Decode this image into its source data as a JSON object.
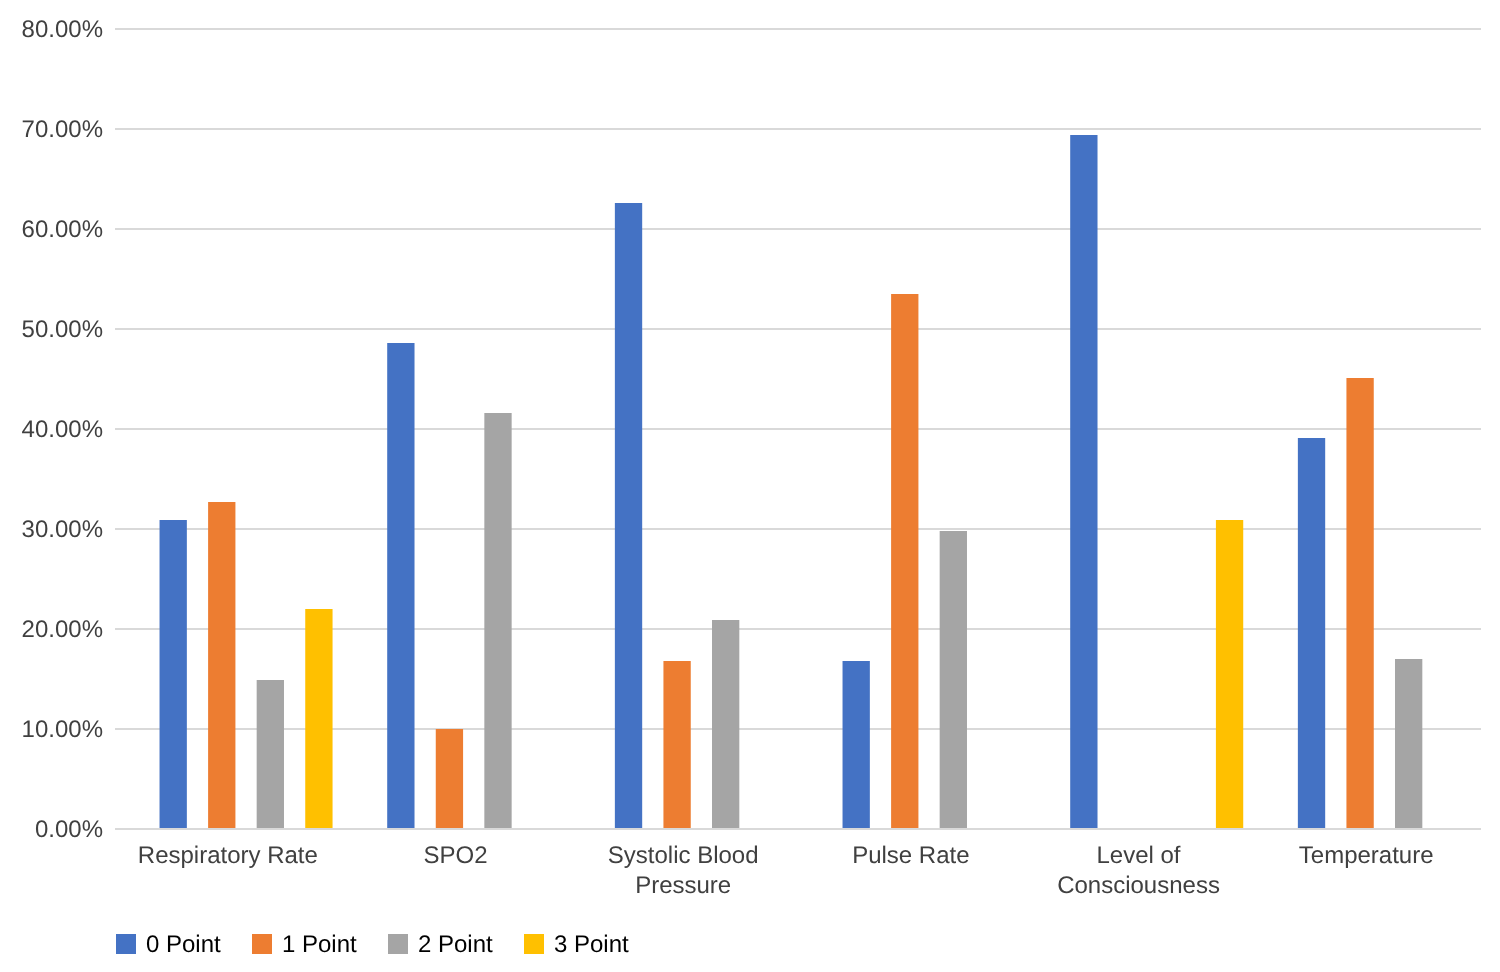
{
  "chart_data": {
    "type": "bar",
    "categories": [
      "Respiratory Rate",
      "SPO2",
      "Systolic Blood Pressure",
      "Pulse Rate",
      "Level of Consciousness",
      "Temperature"
    ],
    "series": [
      {
        "name": "0 Point",
        "color": "#4472c4",
        "values": [
          30.8,
          48.5,
          62.5,
          16.7,
          69.3,
          39.0
        ]
      },
      {
        "name": "1 Point",
        "color": "#ed7d31",
        "values": [
          32.6,
          9.9,
          16.7,
          53.4,
          null,
          45.0
        ]
      },
      {
        "name": "2 Point",
        "color": "#a5a5a5",
        "values": [
          14.8,
          41.5,
          20.8,
          29.7,
          null,
          16.9
        ]
      },
      {
        "name": "3 Point",
        "color": "#ffc000",
        "values": [
          21.9,
          null,
          null,
          null,
          30.8,
          null
        ]
      }
    ],
    "ylim": [
      0,
      80
    ],
    "yticks": [
      {
        "value": 0,
        "label": "0.00%"
      },
      {
        "value": 10,
        "label": "10.00%"
      },
      {
        "value": 20,
        "label": "20.00%"
      },
      {
        "value": 30,
        "label": "30.00%"
      },
      {
        "value": 40,
        "label": "40.00%"
      },
      {
        "value": 50,
        "label": "50.00%"
      },
      {
        "value": 60,
        "label": "60.00%"
      },
      {
        "value": 70,
        "label": "70.00%"
      },
      {
        "value": 80,
        "label": "80.00%"
      }
    ],
    "grid": "y",
    "legend": "bottom"
  }
}
